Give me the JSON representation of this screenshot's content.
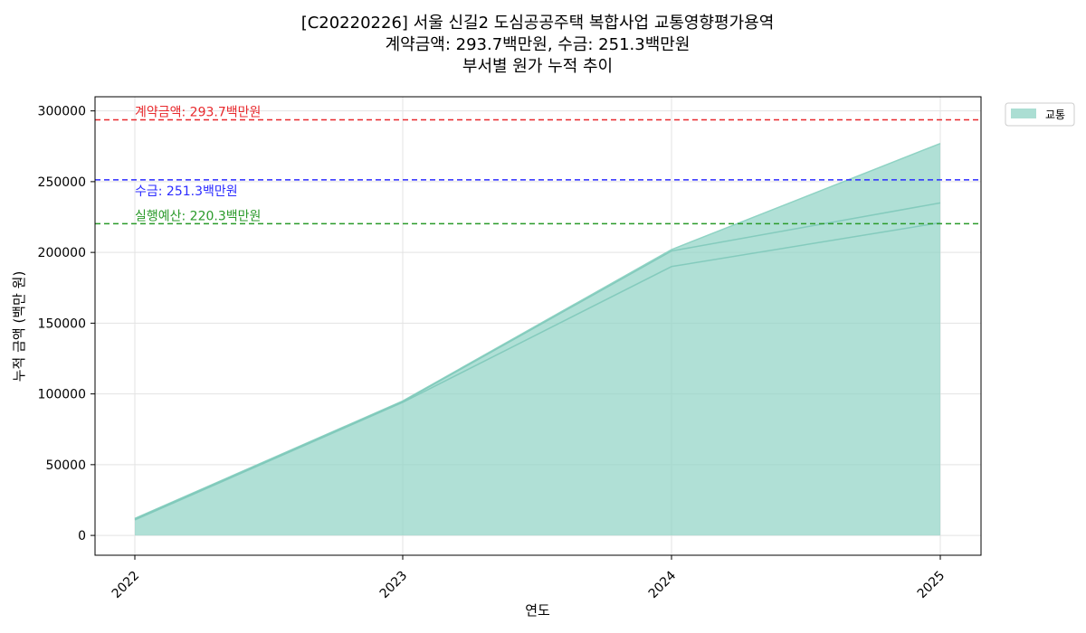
{
  "chart_data": {
    "type": "area",
    "title_lines": [
      "[C20220226] 서울 신길2 도심공공주택 복합사업 교통영향평가용역",
      "계약금액: 293.7백만원, 수금: 251.3백만원",
      "부서별 원가 누적 추이"
    ],
    "xlabel": "연도",
    "ylabel": "누적 금액 (백만 원)",
    "x": [
      "2022",
      "2023",
      "2024",
      "2025"
    ],
    "ylim": [
      -14000,
      310000
    ],
    "yticks": [
      0,
      50000,
      100000,
      150000,
      200000,
      250000,
      300000
    ],
    "grid": true,
    "legend_position": "outside-top-right",
    "series": [
      {
        "name": "교통",
        "color": "#8fd3c4",
        "values": [
          12000,
          95000,
          202000,
          277000
        ],
        "inner_lines": [
          [
            11000,
            94000,
            190000,
            221000
          ],
          [
            11500,
            94500,
            201000,
            235000
          ]
        ]
      }
    ],
    "reference_lines": [
      {
        "value": 293700,
        "label": "계약금액: 293.7백만원",
        "color": "#e8292d",
        "label_position": "above"
      },
      {
        "value": 251300,
        "label": "수금: 251.3백만원",
        "color": "#2b2bff",
        "label_position": "below"
      },
      {
        "value": 220300,
        "label": "실행예산: 220.3백만원",
        "color": "#2a9a2a",
        "label_position": "above"
      }
    ]
  }
}
